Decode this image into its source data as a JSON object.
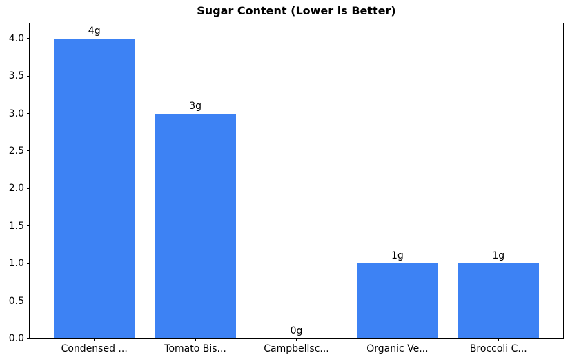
{
  "chart_data": {
    "type": "bar",
    "title": "Sugar Content (Lower is Better)",
    "categories": [
      "Condensed ...",
      "Tomato Bis...",
      "Campbellsc...",
      "Organic Ve...",
      "Broccoli C..."
    ],
    "values": [
      4,
      3,
      0,
      1,
      1
    ],
    "bar_labels": [
      "4g",
      "3g",
      "0g",
      "1g",
      "1g"
    ],
    "bar_positions": [
      0,
      1,
      2,
      3,
      4
    ],
    "bar_width": 0.8,
    "bar_color": "#3d82f4",
    "xlabel": "",
    "ylabel": "",
    "xlim": [
      -0.64,
      4.64
    ],
    "ylim": [
      0,
      4.2
    ],
    "yticks": [
      0.0,
      0.5,
      1.0,
      1.5,
      2.0,
      2.5,
      3.0,
      3.5,
      4.0
    ],
    "ytick_labels": [
      "0.0",
      "0.5",
      "1.0",
      "1.5",
      "2.0",
      "2.5",
      "3.0",
      "3.5",
      "4.0"
    ],
    "grid": false,
    "legend": "none"
  }
}
